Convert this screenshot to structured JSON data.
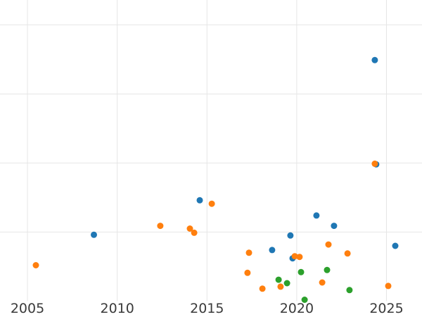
{
  "figure": {
    "title": "",
    "background_color": "#ffffff"
  },
  "chart_data": {
    "type": "scatter",
    "title": "",
    "xlabel": "",
    "ylabel": "",
    "grid": true,
    "legend": false,
    "x_ticks": [
      2005,
      2010,
      2015,
      2020,
      2025
    ],
    "x_tick_labels": [
      "2005",
      "2010",
      "2015",
      "2020",
      "2025"
    ],
    "xlim": [
      2003.47,
      2026.98
    ],
    "y_axis_labels_visible": false,
    "y_value_note": "y-axis tick labels are cropped out of view; y values are expressed in horizontal-gridline units (1 unit per gridline, 0 = implied bottom grid level)",
    "y_gridlines": [
      1,
      2,
      3,
      4
    ],
    "ylim": [
      -0.23,
      4.36
    ],
    "marker_radius_px": 4.5,
    "colors": {
      "grid": "#e6e6e6",
      "tick_label": "#3a3a3a",
      "series_blue": "#1f77b4",
      "series_orange": "#ff7f0e",
      "series_green": "#2ca02c"
    },
    "series": [
      {
        "name": "blue",
        "color": "#1f77b4",
        "points": [
          [
            2008.7,
            0.96
          ],
          [
            2014.6,
            1.46
          ],
          [
            2018.63,
            0.74
          ],
          [
            2019.65,
            0.95
          ],
          [
            2019.77,
            0.62
          ],
          [
            2021.1,
            1.24
          ],
          [
            2022.08,
            1.09
          ],
          [
            2024.35,
            3.49
          ],
          [
            2024.43,
            1.98
          ],
          [
            2025.49,
            0.8
          ]
        ]
      },
      {
        "name": "orange",
        "color": "#ff7f0e",
        "points": [
          [
            2005.47,
            0.52
          ],
          [
            2012.4,
            1.09
          ],
          [
            2014.05,
            1.05
          ],
          [
            2014.29,
            0.99
          ],
          [
            2015.27,
            1.41
          ],
          [
            2017.26,
            0.41
          ],
          [
            2017.34,
            0.7
          ],
          [
            2018.09,
            0.18
          ],
          [
            2019.1,
            0.21
          ],
          [
            2019.89,
            0.65
          ],
          [
            2020.16,
            0.64
          ],
          [
            2021.42,
            0.27
          ],
          [
            2021.77,
            0.82
          ],
          [
            2022.83,
            0.69
          ],
          [
            2024.35,
            1.99
          ],
          [
            2025.1,
            0.22
          ]
        ]
      },
      {
        "name": "green",
        "color": "#2ca02c",
        "points": [
          [
            2018.99,
            0.31
          ],
          [
            2019.46,
            0.26
          ],
          [
            2020.24,
            0.42
          ],
          [
            2020.44,
            0.02
          ],
          [
            2021.69,
            0.45
          ],
          [
            2022.94,
            0.16
          ]
        ]
      }
    ]
  }
}
